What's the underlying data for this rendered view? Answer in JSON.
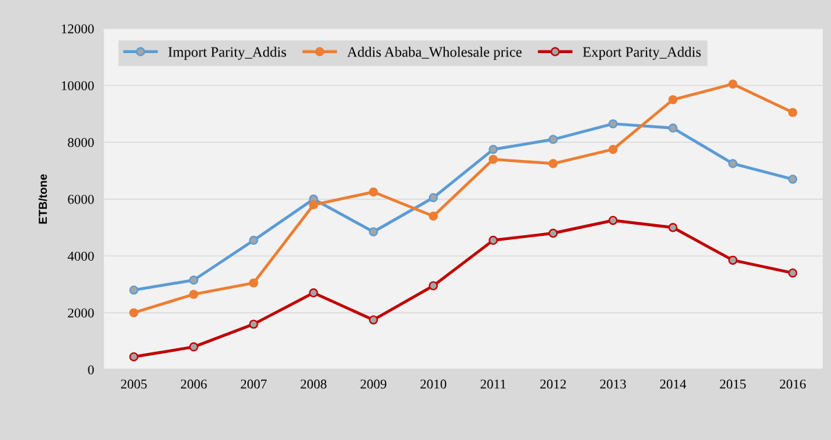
{
  "chart_data": {
    "type": "line",
    "ylabel": "ETB/tone",
    "categories": [
      "2005",
      "2006",
      "2007",
      "2008",
      "2009",
      "2010",
      "2011",
      "2012",
      "2013",
      "2014",
      "2015",
      "2016"
    ],
    "series": [
      {
        "name": "Import Parity_Addis",
        "color": "#5b9bd5",
        "values": [
          2800,
          3150,
          4550,
          6000,
          4850,
          6050,
          7750,
          8100,
          8650,
          8500,
          7250,
          6700
        ]
      },
      {
        "name": "Addis Ababa_Wholesale price",
        "color": "#ed7d31",
        "values": [
          2000,
          2650,
          3050,
          5800,
          6250,
          5400,
          7400,
          7250,
          7750,
          9500,
          10050,
          9050
        ]
      },
      {
        "name": "Export Parity_Addis",
        "color": "#c00000",
        "values": [
          450,
          800,
          1600,
          2700,
          1750,
          2950,
          4550,
          4800,
          5250,
          5000,
          3850,
          3400
        ]
      }
    ],
    "ylim": [
      0,
      12000
    ],
    "yticks": [
      0,
      2000,
      4000,
      6000,
      8000,
      10000,
      12000
    ],
    "grid": "y",
    "legend": "top",
    "marker": "circle",
    "line_style": "solid"
  }
}
